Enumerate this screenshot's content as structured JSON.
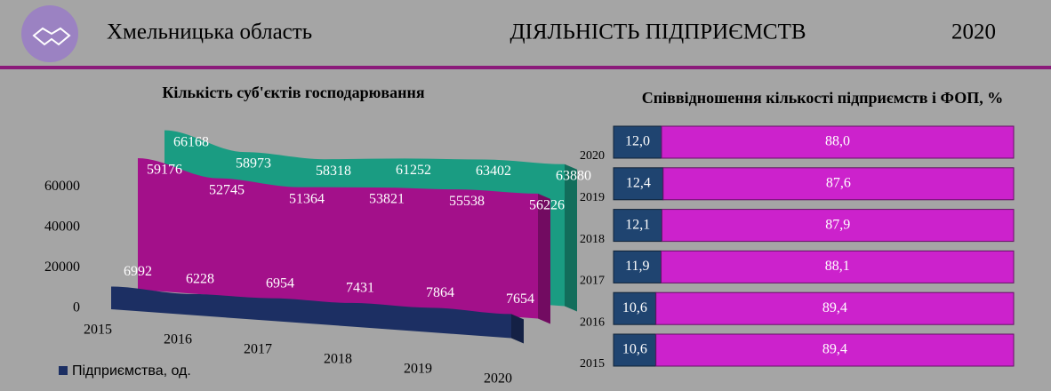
{
  "header": {
    "region": "Хмельницька область",
    "title": "ДІЯЛЬНІСТЬ ПІДПРИЄМСТВ",
    "year": "2020"
  },
  "chart_data": [
    {
      "type": "area",
      "title": "Кількість суб'єктів господарювання",
      "categories": [
        "2015",
        "2016",
        "2017",
        "2018",
        "2019",
        "2020"
      ],
      "ylim": [
        0,
        70000
      ],
      "yticks": [
        0,
        20000,
        40000,
        60000
      ],
      "series": [
        {
          "name": "Підприємства, од.",
          "color": "#1c2f63",
          "values": [
            6992,
            6228,
            6954,
            7431,
            7864,
            7654
          ]
        },
        {
          "color": "#a3108a",
          "values": [
            59176,
            52745,
            51364,
            53821,
            55538,
            56226
          ]
        },
        {
          "color": "#1a9c82",
          "values": [
            66168,
            58973,
            58318,
            61252,
            63402,
            63880
          ]
        }
      ]
    },
    {
      "type": "stacked-hbar",
      "title": "Співвідношення кількості підприємств і ФОП, %",
      "categories": [
        "2020",
        "2019",
        "2018",
        "2017",
        "2016",
        "2015"
      ],
      "xlim": [
        0,
        100
      ],
      "series": [
        {
          "color": "#1f4470",
          "values": [
            12.0,
            12.4,
            12.1,
            11.9,
            10.6,
            10.6
          ],
          "value_labels": [
            "12,0",
            "12,4",
            "12,1",
            "11,9",
            "10,6",
            "10,6"
          ]
        },
        {
          "color": "#cc22cc",
          "values": [
            88.0,
            87.6,
            87.9,
            88.1,
            89.4,
            89.4
          ],
          "value_labels": [
            "88,0",
            "87,6",
            "87,9",
            "88,1",
            "89,4",
            "89,4"
          ]
        }
      ]
    }
  ]
}
